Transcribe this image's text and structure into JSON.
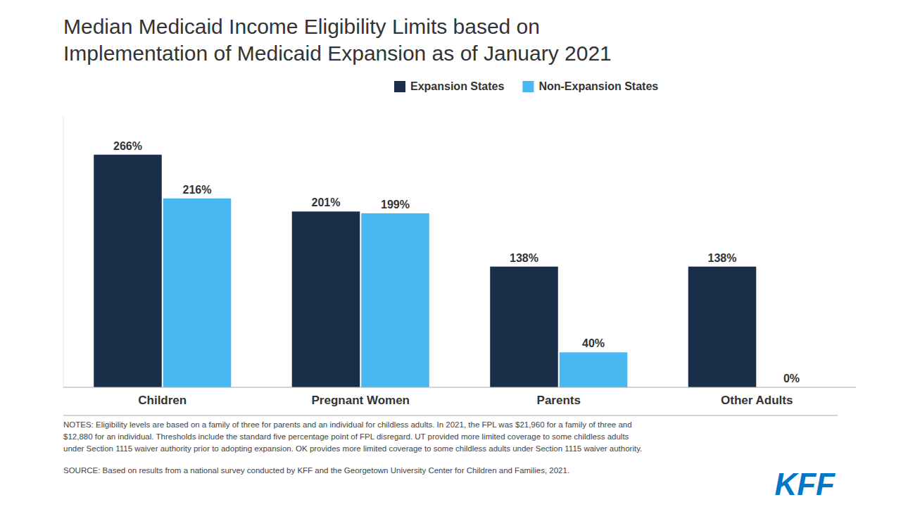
{
  "chart_data": {
    "type": "bar",
    "title": "Median Medicaid Income Eligibility Limits based on\nImplementation of Medicaid Expansion as of January 2021",
    "categories": [
      "Children",
      "Pregnant Women",
      "Parents",
      "Other Adults"
    ],
    "series": [
      {
        "name": "Expansion States",
        "color": "#1a2e4a",
        "values": [
          266,
          201,
          138,
          138
        ],
        "value_labels": [
          "266%",
          "201%",
          "138%",
          "138%"
        ]
      },
      {
        "name": "Non-Expansion States",
        "color": "#4ab8f0",
        "values": [
          216,
          199,
          40,
          0
        ],
        "value_labels": [
          "216%",
          "199%",
          "40%",
          "0%"
        ]
      }
    ],
    "ylim": [
      0,
      310
    ],
    "grid": false,
    "legend": "top",
    "data_labels": true,
    "tick_labels": "x",
    "notes": "NOTES: Eligibility levels are based on a family of three for parents and an individual for childless adults. In 2021, the FPL was $21,960 for a family of three and\n$12,880 for an individual.  Thresholds include the standard five percentage point of FPL disregard. UT provided more limited coverage to some childless adults\nunder Section 1115 waiver authority prior to adopting expansion.  OK provides more limited coverage to some childless adults under Section 1115 waiver authority.",
    "source": "SOURCE: Based on results from a national survey conducted by KFF and the Georgetown University Center for Children and Families, 2021.",
    "annotations": [
      {
        "text": "KFF",
        "color": "#0077c8"
      }
    ]
  }
}
